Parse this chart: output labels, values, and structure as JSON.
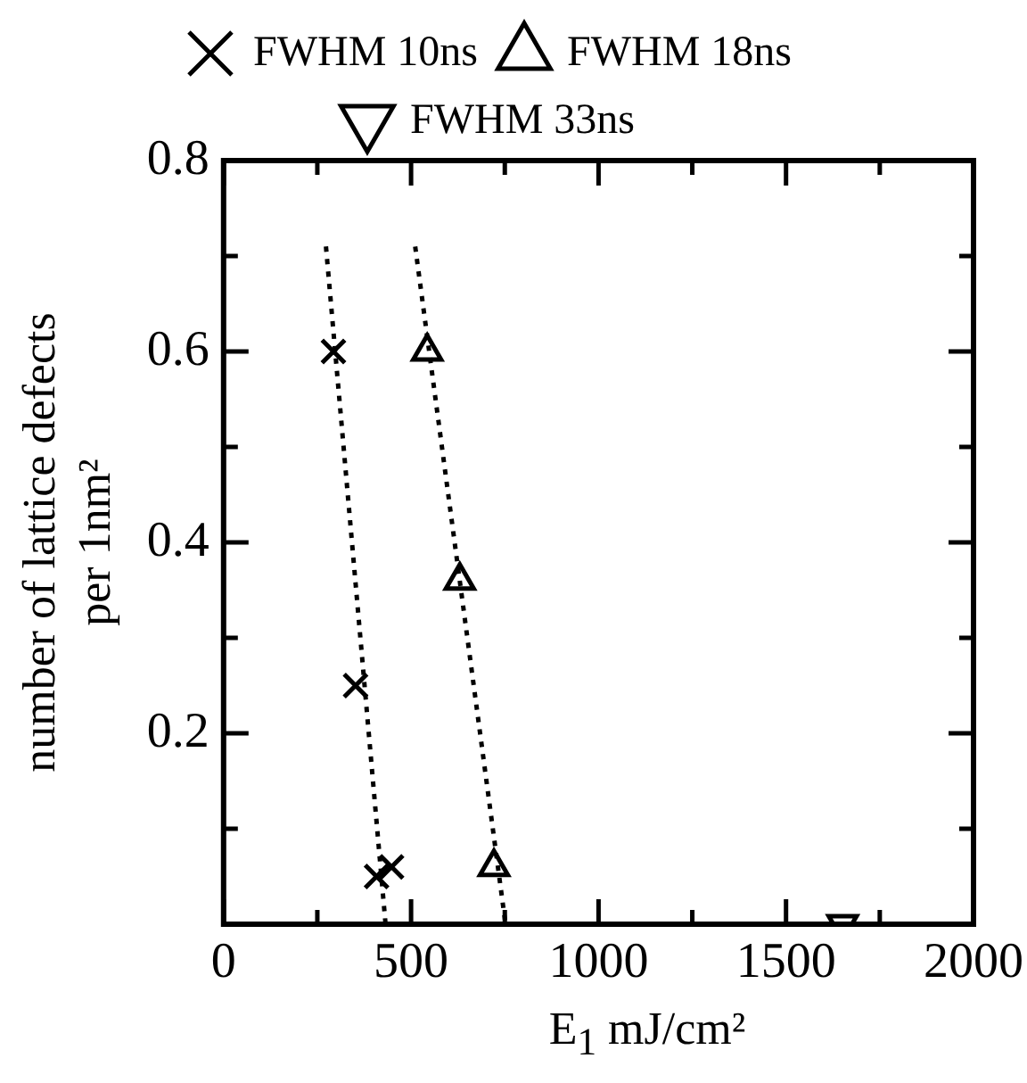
{
  "chart_data": {
    "type": "scatter",
    "xlabel": "E$_{1}$ mJ/cm²",
    "ylabel": "number of lattice defects\nper 1nm²",
    "xlim": [
      0,
      2000
    ],
    "ylim": [
      0,
      0.8
    ],
    "xticks": [
      0,
      {
        "value": 250,
        "label": null
      },
      500,
      {
        "value": 750,
        "label": null
      },
      1000,
      {
        "value": 1250,
        "label": null
      },
      1500,
      {
        "value": 1750,
        "label": null
      },
      2000
    ],
    "yticks": [
      {
        "value": 0,
        "label": null
      },
      {
        "value": 0.1,
        "label": null
      },
      0.2,
      {
        "value": 0.3,
        "label": null
      },
      0.4,
      {
        "value": 0.5,
        "label": null
      },
      0.6,
      {
        "value": 0.7,
        "label": null
      },
      0.8
    ],
    "legend": "top",
    "series": [
      {
        "name": "FWHM 10ns",
        "color": "#000000",
        "marker": "cross",
        "x": [
          293,
          352,
          408,
          448
        ],
        "values": [
          0.6,
          0.25,
          0.05,
          0.06
        ]
      },
      {
        "name": "FWHM 18ns",
        "color": "#000000",
        "marker": "triangle",
        "x": [
          543,
          630,
          721
        ],
        "values": [
          0.6,
          0.36,
          0.06
        ]
      },
      {
        "name": "FWHM 33ns",
        "color": "#000000",
        "marker": "triangle-down",
        "x": [
          1651
        ],
        "values": [
          0
        ]
      },
      {
        "type": "line",
        "color": "#000000",
        "marker": "none",
        "line_style": "dotted",
        "x": [
          273,
          432
        ],
        "values": [
          0.71,
          0
        ]
      },
      {
        "type": "line",
        "color": "#000000",
        "marker": "none",
        "line_style": "dotted",
        "x": [
          511,
          752
        ],
        "values": [
          0.71,
          0
        ]
      }
    ]
  }
}
